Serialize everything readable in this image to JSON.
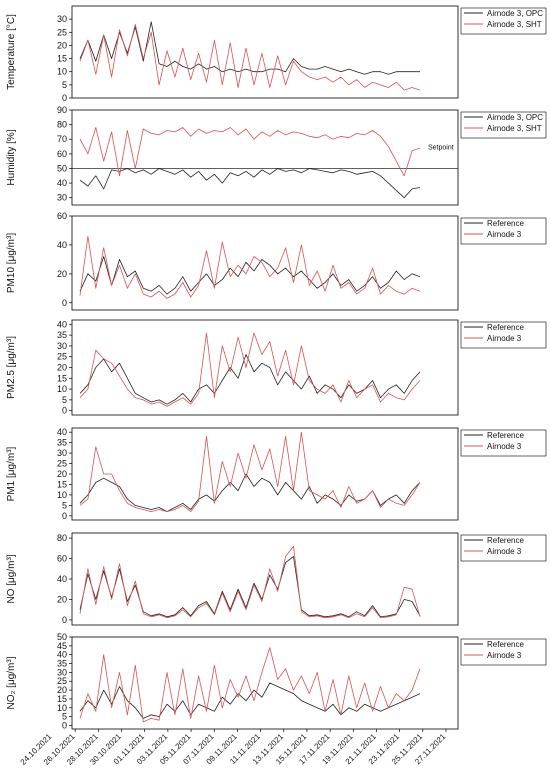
{
  "chart_data": {
    "type": "line",
    "x_axis": {
      "tick_labels": [
        "24.10.2021",
        "26.10.2021",
        "28.10.2021",
        "30.10.2021",
        "01.11.2021",
        "03.11.2021",
        "05.11.2021",
        "07.11.2021",
        "09.11.2021",
        "11.11.2021",
        "13.11.2021",
        "15.11.2021",
        "17.11.2021",
        "19.11.2021",
        "21.11.2021",
        "23.11.2021",
        "25.11.2021",
        "27.11.2021"
      ]
    },
    "panels": [
      {
        "ylabel": "Temperature [°C]",
        "ylim": [
          0,
          35
        ],
        "yticks": [
          0,
          5,
          10,
          15,
          20,
          25,
          30
        ],
        "legend": [
          {
            "name": "Airnode 3, OPC",
            "color": "#222222"
          },
          {
            "name": "Airnode 3, SHT",
            "color": "#d9534f"
          }
        ],
        "series": [
          {
            "name": "Airnode 3, OPC",
            "color": "#222222",
            "values": [
              15,
              22,
              14,
              24,
              15,
              25,
              17,
              27,
              14,
              29,
              13,
              12,
              14,
              12,
              11,
              13,
              11,
              12,
              10,
              11,
              10,
              11,
              10,
              10,
              11,
              11,
              10,
              15,
              12,
              11,
              11,
              12,
              11,
              10,
              11,
              10,
              9,
              10,
              10,
              9,
              10,
              10,
              10,
              10
            ]
          },
          {
            "name": "Airnode 3, SHT",
            "color": "#d9534f",
            "values": [
              14,
              22,
              9,
              24,
              8,
              26,
              16,
              28,
              15,
              25,
              5,
              18,
              8,
              19,
              7,
              17,
              6,
              22,
              5,
              21,
              4,
              19,
              5,
              17,
              4,
              16,
              5,
              14,
              10,
              8,
              7,
              8,
              6,
              8,
              5,
              7,
              4,
              6,
              5,
              4,
              6,
              3,
              4,
              3
            ]
          }
        ]
      },
      {
        "ylabel": "Humidity [%]",
        "ylim": [
          25,
          90
        ],
        "yticks": [
          30,
          40,
          50,
          60,
          70,
          80,
          90
        ],
        "annotation": {
          "label": "Setpoint",
          "value": 50
        },
        "legend": [
          {
            "name": "Airnode 3, OPC",
            "color": "#222222"
          },
          {
            "name": "Airnode 3, SHT",
            "color": "#d9534f"
          }
        ],
        "series": [
          {
            "name": "Airnode 3, OPC",
            "color": "#222222",
            "values": [
              42,
              38,
              45,
              36,
              49,
              48,
              50,
              47,
              49,
              46,
              50,
              48,
              46,
              49,
              44,
              48,
              42,
              46,
              40,
              47,
              45,
              48,
              44,
              49,
              46,
              50,
              48,
              49,
              47,
              50,
              49,
              48,
              47,
              49,
              48,
              46,
              47,
              48,
              45,
              40,
              35,
              30,
              36,
              37
            ]
          },
          {
            "name": "Airnode 3, SHT",
            "color": "#d9534f",
            "values": [
              70,
              60,
              78,
              55,
              75,
              45,
              76,
              50,
              77,
              74,
              73,
              76,
              75,
              78,
              72,
              77,
              74,
              76,
              75,
              78,
              73,
              77,
              70,
              75,
              72,
              76,
              73,
              75,
              74,
              72,
              71,
              73,
              70,
              72,
              71,
              74,
              73,
              76,
              72,
              65,
              55,
              45,
              62,
              64
            ]
          }
        ]
      },
      {
        "ylabel": "PM10 [μg/m³]",
        "ylim": [
          -5,
          60
        ],
        "yticks": [
          0,
          20,
          40,
          60
        ],
        "legend": [
          {
            "name": "Reference",
            "color": "#222222"
          },
          {
            "name": "Airnode 3",
            "color": "#d9534f"
          }
        ],
        "series": [
          {
            "name": "Reference",
            "color": "#222222",
            "values": [
              8,
              20,
              15,
              32,
              12,
              30,
              18,
              22,
              10,
              8,
              12,
              6,
              10,
              18,
              8,
              14,
              20,
              12,
              16,
              24,
              18,
              28,
              22,
              30,
              26,
              20,
              24,
              18,
              22,
              16,
              10,
              14,
              20,
              12,
              16,
              8,
              12,
              18,
              10,
              14,
              22,
              16,
              20,
              18
            ]
          },
          {
            "name": "Airnode 3",
            "color": "#d9534f",
            "values": [
              5,
              46,
              10,
              38,
              12,
              26,
              10,
              20,
              6,
              4,
              8,
              3,
              6,
              14,
              4,
              12,
              36,
              10,
              42,
              18,
              26,
              20,
              32,
              28,
              18,
              24,
              38,
              14,
              40,
              12,
              22,
              8,
              26,
              10,
              14,
              6,
              10,
              24,
              6,
              12,
              8,
              6,
              10,
              8
            ]
          }
        ]
      },
      {
        "ylabel": "PM2.5 [μg/m³]",
        "ylim": [
          -2,
          42
        ],
        "yticks": [
          0,
          5,
          10,
          15,
          20,
          25,
          30,
          35,
          40
        ],
        "legend": [
          {
            "name": "Reference",
            "color": "#222222"
          },
          {
            "name": "Airnode 3",
            "color": "#d9534f"
          }
        ],
        "series": [
          {
            "name": "Reference",
            "color": "#222222",
            "values": [
              8,
              12,
              20,
              24,
              18,
              22,
              15,
              8,
              6,
              4,
              5,
              3,
              5,
              8,
              4,
              10,
              12,
              8,
              14,
              20,
              15,
              26,
              18,
              22,
              20,
              12,
              18,
              14,
              10,
              16,
              8,
              12,
              10,
              6,
              12,
              8,
              10,
              14,
              6,
              10,
              12,
              8,
              14,
              18
            ]
          },
          {
            "name": "Airnode 3",
            "color": "#d9534f",
            "values": [
              6,
              10,
              28,
              24,
              22,
              16,
              10,
              6,
              5,
              3,
              4,
              2,
              4,
              6,
              3,
              8,
              36,
              6,
              30,
              18,
              34,
              20,
              36,
              26,
              32,
              16,
              28,
              12,
              30,
              14,
              10,
              8,
              12,
              4,
              14,
              6,
              10,
              12,
              4,
              8,
              6,
              5,
              10,
              14
            ]
          }
        ]
      },
      {
        "ylabel": "PM1 [μg/m³]",
        "ylim": [
          -2,
          42
        ],
        "yticks": [
          0,
          5,
          10,
          15,
          20,
          25,
          30,
          35,
          40
        ],
        "legend": [
          {
            "name": "Reference",
            "color": "#222222"
          },
          {
            "name": "Airnode 3",
            "color": "#d9534f"
          }
        ],
        "series": [
          {
            "name": "Reference",
            "color": "#222222",
            "values": [
              6,
              10,
              16,
              18,
              16,
              14,
              8,
              5,
              4,
              3,
              4,
              2,
              4,
              6,
              3,
              8,
              10,
              7,
              12,
              16,
              12,
              20,
              14,
              18,
              16,
              10,
              16,
              12,
              8,
              14,
              6,
              10,
              8,
              5,
              10,
              7,
              8,
              12,
              5,
              8,
              10,
              6,
              12,
              16
            ]
          },
          {
            "name": "Airnode 3",
            "color": "#d9534f",
            "values": [
              5,
              8,
              33,
              20,
              20,
              12,
              6,
              4,
              3,
              2,
              3,
              2,
              3,
              5,
              2,
              7,
              38,
              6,
              26,
              14,
              30,
              18,
              34,
              22,
              32,
              14,
              38,
              12,
              40,
              12,
              10,
              8,
              12,
              4,
              14,
              6,
              8,
              12,
              4,
              8,
              6,
              5,
              10,
              16
            ]
          }
        ]
      },
      {
        "ylabel": "NO [μg/m³]",
        "ylim": [
          -5,
          85
        ],
        "yticks": [
          0,
          20,
          40,
          60,
          80
        ],
        "legend": [
          {
            "name": "Reference",
            "color": "#222222"
          },
          {
            "name": "Airnode 3",
            "color": "#d9534f"
          }
        ],
        "series": [
          {
            "name": "Reference",
            "color": "#222222",
            "values": [
              10,
              45,
              20,
              48,
              22,
              50,
              18,
              34,
              8,
              4,
              6,
              3,
              5,
              12,
              4,
              14,
              18,
              6,
              28,
              10,
              30,
              12,
              36,
              20,
              44,
              30,
              56,
              62,
              10,
              4,
              5,
              3,
              4,
              6,
              3,
              8,
              4,
              14,
              3,
              4,
              6,
              20,
              18,
              4
            ]
          },
          {
            "name": "Airnode 3",
            "color": "#d9534f",
            "values": [
              6,
              50,
              15,
              52,
              20,
              55,
              14,
              38,
              6,
              3,
              5,
              2,
              4,
              10,
              3,
              12,
              16,
              5,
              26,
              8,
              28,
              10,
              34,
              18,
              50,
              28,
              62,
              72,
              8,
              3,
              4,
              2,
              3,
              5,
              2,
              6,
              3,
              12,
              2,
              3,
              5,
              32,
              30,
              3
            ]
          }
        ]
      },
      {
        "ylabel": "NO₂ [μg/m³]",
        "ylim": [
          -2,
          50
        ],
        "yticks": [
          0,
          5,
          10,
          15,
          20,
          25,
          30,
          35,
          40,
          45,
          50
        ],
        "legend": [
          {
            "name": "Reference",
            "color": "#222222"
          },
          {
            "name": "Airnode 3",
            "color": "#d9534f"
          }
        ],
        "series": [
          {
            "name": "Reference",
            "color": "#222222",
            "values": [
              8,
              14,
              10,
              20,
              12,
              22,
              14,
              10,
              4,
              6,
              5,
              12,
              8,
              14,
              6,
              12,
              10,
              8,
              16,
              12,
              18,
              14,
              20,
              16,
              24,
              22,
              20,
              18,
              14,
              12,
              10,
              8,
              12,
              6,
              10,
              8,
              12,
              10,
              8,
              10,
              12,
              14,
              16,
              18
            ]
          },
          {
            "name": "Airnode 3",
            "color": "#d9534f",
            "values": [
              4,
              18,
              8,
              40,
              10,
              30,
              6,
              34,
              2,
              4,
              3,
              30,
              6,
              32,
              4,
              28,
              8,
              34,
              10,
              26,
              16,
              28,
              14,
              30,
              44,
              26,
              32,
              20,
              28,
              18,
              30,
              8,
              26,
              6,
              28,
              10,
              24,
              8,
              22,
              10,
              18,
              14,
              20,
              32
            ]
          }
        ]
      }
    ]
  }
}
